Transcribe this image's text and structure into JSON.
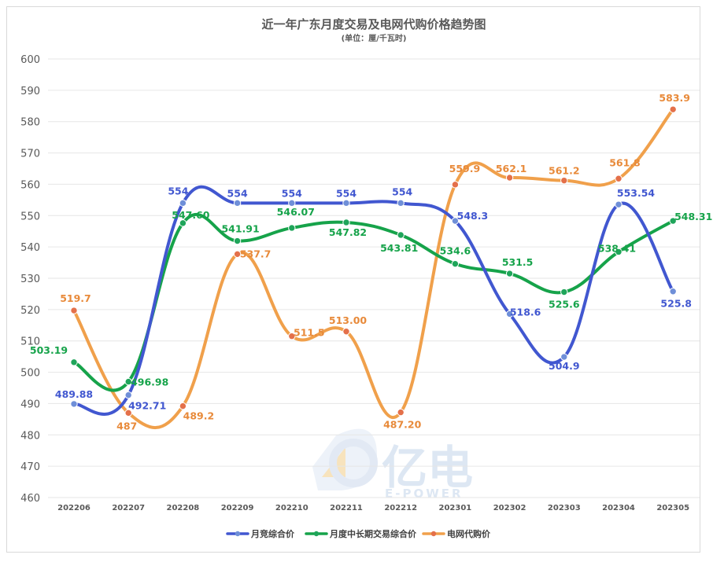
{
  "chart_data": {
    "type": "line",
    "title": "近一年广东月度交易及电网代购价格趋势图",
    "subtitle": "(单位：厘/千瓦时)",
    "xlabel": "",
    "ylabel": "",
    "ylim": [
      460,
      600
    ],
    "ytick_step": 10,
    "grid": true,
    "legend_position": "bottom",
    "categories": [
      "202206",
      "202207",
      "202208",
      "202209",
      "202210",
      "202211",
      "202212",
      "202301",
      "202302",
      "202303",
      "202304",
      "202305"
    ],
    "series": [
      {
        "name": "月竞综合价",
        "color": "#4157d0",
        "marker": "#6f8fd8",
        "values": [
          489.88,
          492.71,
          554,
          554,
          554,
          554,
          554,
          548.3,
          518.6,
          504.9,
          553.54,
          525.8
        ],
        "labels": [
          "489.88",
          "492.71",
          "554",
          "554",
          "554",
          "554",
          "554",
          "548.3",
          "518.6",
          "504.9",
          "553.54",
          "525.8"
        ]
      },
      {
        "name": "月度中长期交易综合价",
        "color": "#16a34a",
        "marker": "#1fa55a",
        "values": [
          503.19,
          496.98,
          547.6,
          541.91,
          546.07,
          547.82,
          543.81,
          534.6,
          531.5,
          525.6,
          538.41,
          548.31
        ],
        "labels": [
          "503.19",
          "496.98",
          "547.60",
          "541.91",
          "546.07",
          "547.82",
          "543.81",
          "534.6",
          "531.5",
          "525.6",
          "538.41",
          "548.31"
        ]
      },
      {
        "name": "电网代购价",
        "color": "#f0a04b",
        "marker": "#e4704a",
        "values": [
          519.7,
          487,
          489.2,
          537.7,
          511.5,
          513.0,
          487.2,
          559.9,
          562.1,
          561.2,
          561.8,
          583.9
        ],
        "labels": [
          "519.7",
          "487",
          "489.2",
          "537.7",
          "511.5",
          "513.00",
          "487.20",
          "559.9",
          "562.1",
          "561.2",
          "561.8",
          "583.9"
        ]
      }
    ]
  },
  "watermark": {
    "brand": "亿电",
    "sub": "E-POWER"
  }
}
